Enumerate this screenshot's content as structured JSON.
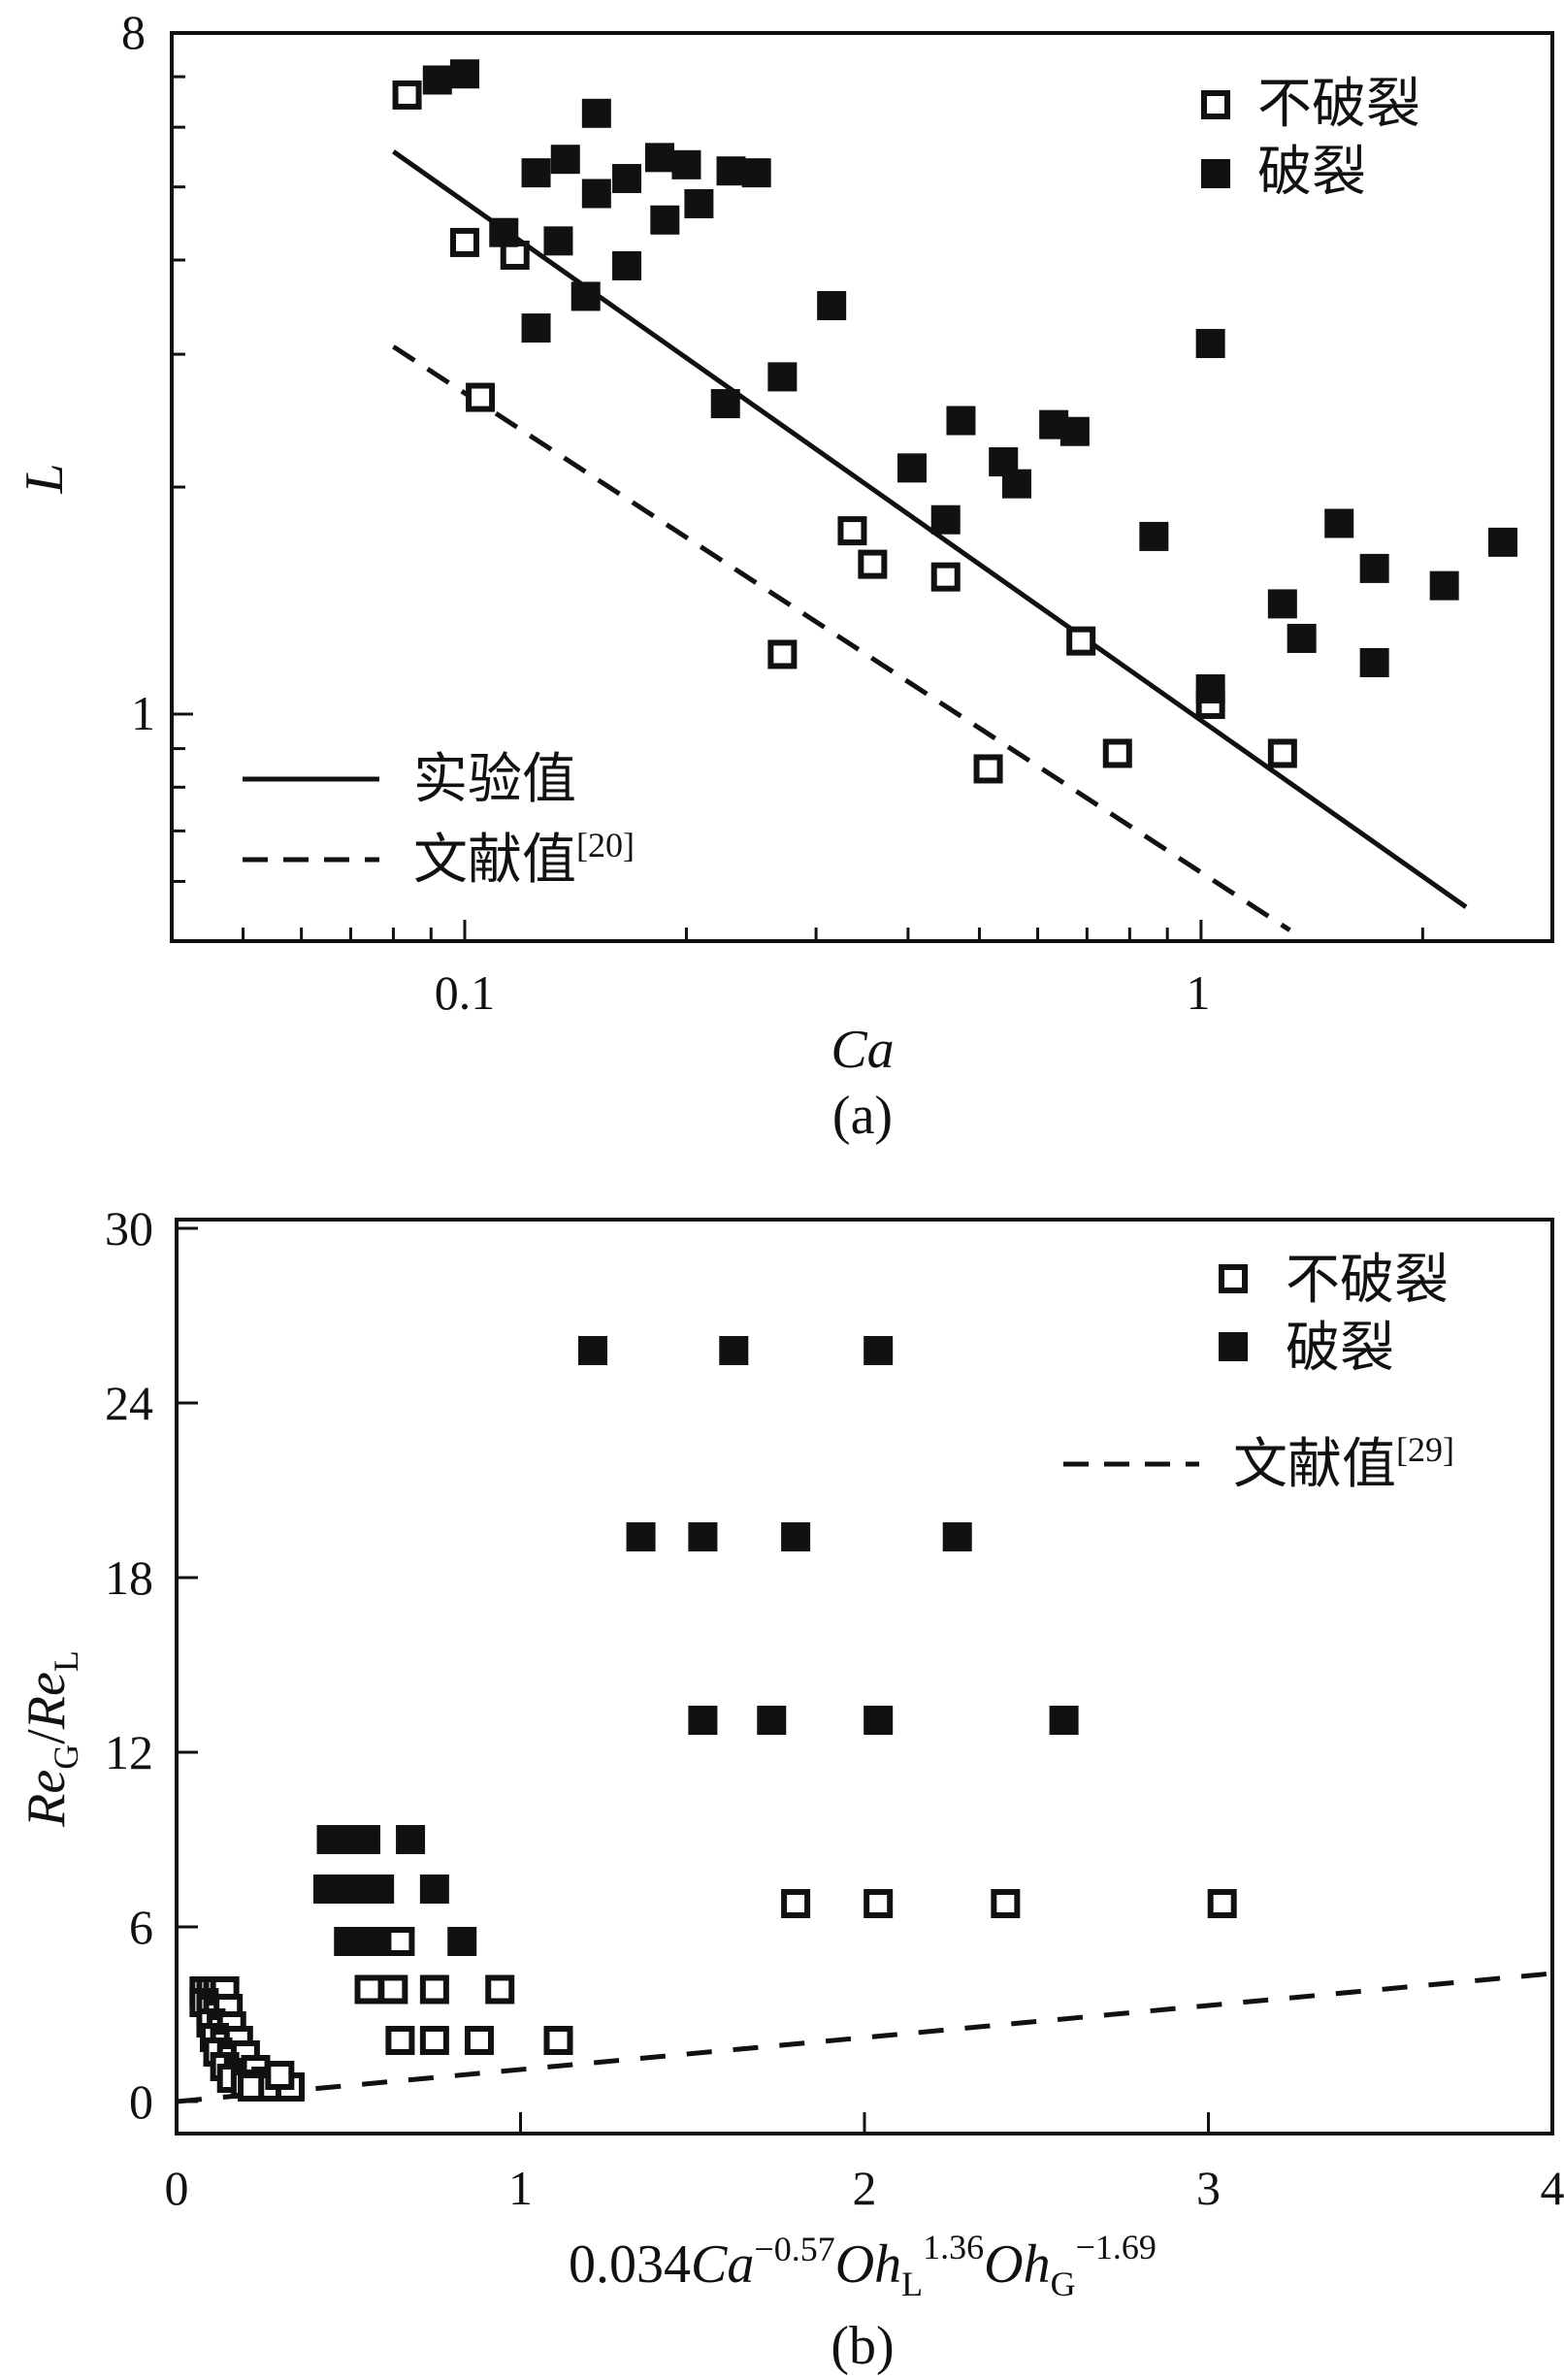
{
  "colors": {
    "ink": "#111111",
    "background": "#ffffff"
  },
  "chart_data": [
    {
      "type": "scatter",
      "panel_label": "(a)",
      "xlabel": "Ca",
      "ylabel": "L",
      "xscale": "log",
      "yscale": "log",
      "xlim": [
        0.04,
        3.0
      ],
      "ylim": [
        0.5,
        8
      ],
      "xticks": [
        {
          "value": 0.1,
          "label": "0.1"
        },
        {
          "value": 1,
          "label": "1"
        }
      ],
      "yticks": [
        {
          "value": 1,
          "label": "1"
        },
        {
          "value": 8,
          "label": "8"
        }
      ],
      "legend_placement": "top-right and bottom-left",
      "series": [
        {
          "name": "不破裂",
          "marker": "open-square",
          "points": [
            [
              0.0835,
              6.62
            ],
            [
              0.1,
              4.22
            ],
            [
              0.117,
              4.06
            ],
            [
              0.105,
              2.63
            ],
            [
              0.336,
              1.75
            ],
            [
              0.358,
              1.58
            ],
            [
              0.45,
              1.52
            ],
            [
              0.27,
              1.2
            ],
            [
              0.687,
              1.25
            ],
            [
              0.514,
              0.846
            ],
            [
              0.77,
              0.887
            ],
            [
              1.03,
              1.03
            ],
            [
              1.29,
              0.887
            ]
          ]
        },
        {
          "name": "破裂",
          "marker": "filled-square",
          "points": [
            [
              0.0918,
              6.93
            ],
            [
              0.1,
              7.06
            ],
            [
              0.113,
              4.35
            ],
            [
              0.125,
              5.22
            ],
            [
              0.137,
              5.44
            ],
            [
              0.151,
              6.26
            ],
            [
              0.151,
              4.9
            ],
            [
              0.134,
              4.24
            ],
            [
              0.125,
              3.25
            ],
            [
              0.146,
              3.58
            ],
            [
              0.166,
              5.13
            ],
            [
              0.166,
              3.93
            ],
            [
              0.184,
              5.47
            ],
            [
              0.187,
              4.52
            ],
            [
              0.2,
              5.35
            ],
            [
              0.208,
              4.75
            ],
            [
              0.23,
              5.25
            ],
            [
              0.249,
              5.22
            ],
            [
              0.226,
              2.58
            ],
            [
              0.27,
              2.8
            ],
            [
              0.315,
              3.48
            ],
            [
              0.405,
              2.12
            ],
            [
              0.45,
              1.81
            ],
            [
              0.472,
              2.45
            ],
            [
              0.539,
              2.16
            ],
            [
              0.562,
              2.02
            ],
            [
              0.631,
              2.42
            ],
            [
              0.674,
              2.37
            ],
            [
              0.863,
              1.72
            ],
            [
              1.03,
              3.1
            ],
            [
              1.03,
              1.08
            ],
            [
              1.29,
              1.4
            ],
            [
              1.37,
              1.26
            ],
            [
              1.54,
              1.79
            ],
            [
              1.72,
              1.56
            ],
            [
              1.72,
              1.17
            ],
            [
              2.14,
              1.48
            ],
            [
              2.57,
              1.69
            ]
          ]
        }
      ],
      "lines": [
        {
          "name": "实验值",
          "style": "solid",
          "points": [
            [
              0.08,
              5.57
            ],
            [
              2.29,
              0.555
            ]
          ]
        },
        {
          "name": "文献值",
          "ref": "[20]",
          "style": "dashed",
          "points": [
            [
              0.08,
              3.07
            ],
            [
              1.32,
              0.517
            ]
          ]
        }
      ]
    },
    {
      "type": "scatter",
      "panel_label": "(b)",
      "xlabel_parts": {
        "coef": "0.034",
        "ca": "Ca",
        "ca_exp": "−0.57",
        "ohl": "Oh",
        "ohl_sub": "L",
        "ohl_exp": "1.36",
        "ohg": "Oh",
        "ohg_sub": "G",
        "ohg_exp": "−1.69"
      },
      "ylabel_parts": {
        "re1": "Re",
        "sub1": "G",
        "slash": "/",
        "re2": "Re",
        "sub2": "L"
      },
      "xlim": [
        0,
        4
      ],
      "ylim": [
        -1.1,
        30.3
      ],
      "xticks": [
        {
          "value": 0,
          "label": "0"
        },
        {
          "value": 1,
          "label": "1"
        },
        {
          "value": 2,
          "label": "2"
        },
        {
          "value": 3,
          "label": "3"
        },
        {
          "value": 4,
          "label": "4"
        }
      ],
      "yticks": [
        {
          "value": 0,
          "label": "0"
        },
        {
          "value": 6,
          "label": "6"
        },
        {
          "value": 12,
          "label": "12"
        },
        {
          "value": 18,
          "label": "18"
        },
        {
          "value": 24,
          "label": "24"
        },
        {
          "value": 30,
          "label": "30"
        }
      ],
      "legend_placement": "top-right",
      "series": [
        {
          "name": "不破裂",
          "marker": "open-square",
          "points": [
            [
              1.8,
              6.8
            ],
            [
              2.04,
              6.8
            ],
            [
              2.41,
              6.8
            ],
            [
              3.04,
              6.8
            ],
            [
              0.65,
              5.5
            ],
            [
              0.56,
              3.85
            ],
            [
              0.63,
              3.85
            ],
            [
              0.75,
              3.85
            ],
            [
              0.94,
              3.85
            ],
            [
              0.65,
              2.1
            ],
            [
              0.75,
              2.1
            ],
            [
              0.88,
              2.1
            ],
            [
              1.11,
              2.1
            ],
            [
              0.08,
              3.8
            ],
            [
              0.1,
              3.8
            ],
            [
              0.12,
              3.8
            ],
            [
              0.14,
              3.8
            ],
            [
              0.08,
              3.4
            ],
            [
              0.1,
              3.2
            ],
            [
              0.12,
              3.0
            ],
            [
              0.15,
              3.2
            ],
            [
              0.1,
              2.7
            ],
            [
              0.13,
              2.5
            ],
            [
              0.16,
              2.6
            ],
            [
              0.11,
              2.2
            ],
            [
              0.14,
              2.0
            ],
            [
              0.18,
              2.1
            ],
            [
              0.12,
              1.7
            ],
            [
              0.16,
              1.5
            ],
            [
              0.2,
              1.6
            ],
            [
              0.14,
              1.2
            ],
            [
              0.18,
              1.0
            ],
            [
              0.23,
              1.1
            ],
            [
              0.16,
              0.8
            ],
            [
              0.2,
              0.6
            ],
            [
              0.26,
              0.7
            ],
            [
              0.22,
              0.5
            ],
            [
              0.28,
              0.5
            ],
            [
              0.33,
              0.5
            ],
            [
              0.3,
              0.9
            ]
          ]
        },
        {
          "name": "破裂",
          "marker": "filled-square",
          "points": [
            [
              1.21,
              25.8
            ],
            [
              1.62,
              25.8
            ],
            [
              2.04,
              25.8
            ],
            [
              1.35,
              19.4
            ],
            [
              1.53,
              19.4
            ],
            [
              1.8,
              19.4
            ],
            [
              2.27,
              19.4
            ],
            [
              1.53,
              13.1
            ],
            [
              1.73,
              13.1
            ],
            [
              2.04,
              13.1
            ],
            [
              2.58,
              13.1
            ],
            [
              0.45,
              9.0
            ],
            [
              0.5,
              9.0
            ],
            [
              0.55,
              9.0
            ],
            [
              0.68,
              9.0
            ],
            [
              0.44,
              7.3
            ],
            [
              0.48,
              7.3
            ],
            [
              0.52,
              7.3
            ],
            [
              0.59,
              7.3
            ],
            [
              0.75,
              7.3
            ],
            [
              0.5,
              5.5
            ],
            [
              0.54,
              5.5
            ],
            [
              0.58,
              5.5
            ],
            [
              0.83,
              5.5
            ]
          ]
        }
      ],
      "lines": [
        {
          "name": "文献值",
          "ref": "[29]",
          "style": "dashed",
          "points": [
            [
              0,
              0
            ],
            [
              4,
              4.4
            ]
          ]
        }
      ]
    }
  ]
}
